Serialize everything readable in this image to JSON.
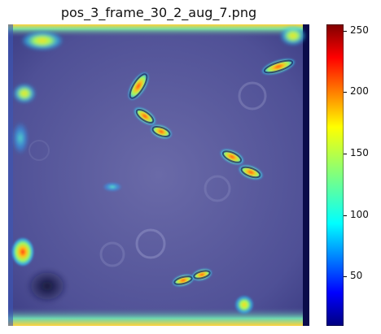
{
  "title": "pos_3_frame_30_2_aug_7.png",
  "colorbar": {
    "ticks": [
      "250",
      "200",
      "150",
      "100",
      "50"
    ],
    "tick_values": [
      250,
      200,
      150,
      100,
      50
    ],
    "range": [
      10,
      255
    ],
    "colormap": "jet"
  },
  "colors": {
    "background_blue": "#4b4d9a",
    "jet_low": "#00007f",
    "jet_high": "#7f0000"
  }
}
